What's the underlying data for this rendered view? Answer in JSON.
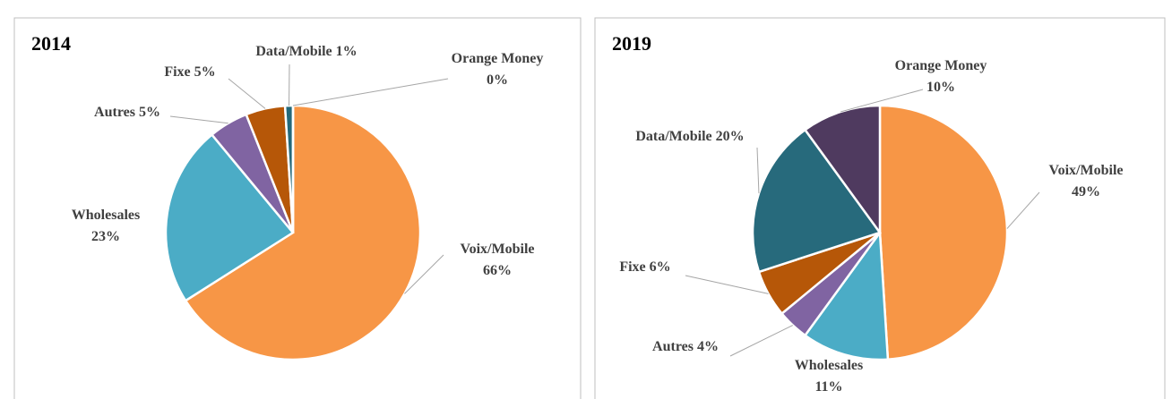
{
  "chart_data": [
    {
      "type": "pie",
      "title": "2014",
      "categories": [
        "Voix/Mobile",
        "Wholesales",
        "Autres",
        "Fixe",
        "Data/Mobile",
        "Orange Money"
      ],
      "values": [
        66,
        23,
        5,
        5,
        1,
        0
      ],
      "value_labels": [
        "66%",
        "23%",
        "5%",
        "5%",
        "1%",
        "0%"
      ],
      "colors": [
        "#f79646",
        "#4bacc6",
        "#8064a2",
        "#b65708",
        "#23697a",
        "#4f3a5f"
      ]
    },
    {
      "type": "pie",
      "title": "2019",
      "categories": [
        "Voix/Mobile",
        "Wholesales",
        "Autres",
        "Fixe",
        "Data/Mobile",
        "Orange Money"
      ],
      "values": [
        49,
        11,
        4,
        6,
        20,
        10
      ],
      "value_labels": [
        "49%",
        "11%",
        "4%",
        "6%",
        "20%",
        "10%"
      ],
      "colors": [
        "#f79646",
        "#4bacc6",
        "#8064a2",
        "#b65708",
        "#276a7c",
        "#4f3a5f"
      ]
    }
  ]
}
